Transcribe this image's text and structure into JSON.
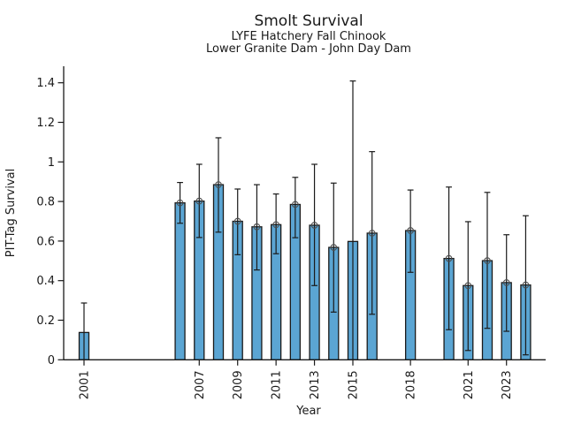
{
  "figure": {
    "title": "Smolt Survival",
    "subtitle_line1": "LYFE Hatchery Fall Chinook",
    "subtitle_line2": "Lower Granite Dam - John Day Dam"
  },
  "chart_data": {
    "type": "bar",
    "title": "Smolt Survival",
    "subtitle": [
      "LYFE Hatchery Fall Chinook",
      "Lower Granite Dam - John Day Dam"
    ],
    "xlabel": "Year",
    "ylabel": "PIT-Tag Survival",
    "ylim": [
      0,
      1.48
    ],
    "xlim": [
      2000,
      2025
    ],
    "grid": false,
    "legend": "none",
    "background": "#ffffff",
    "bar_color": "#5BA5D3",
    "bar_edge_color": "#1a1a1a",
    "error_bar_color": "#1a1a1a",
    "marker_style": "open-circle",
    "marker_color": "#4d4d4d",
    "yticks": [
      "0",
      "0.2",
      "0.4",
      "0.6",
      "0.8",
      "1",
      "1.2",
      "1.4"
    ],
    "xticks": [
      2001,
      2007,
      2009,
      2011,
      2013,
      2015,
      2018,
      2021,
      2023
    ],
    "points": [
      {
        "year": 2001,
        "value": 0.138,
        "lo": 0.0,
        "hi": 0.287,
        "marker": false
      },
      {
        "year": 2006,
        "value": 0.793,
        "lo": 0.69,
        "hi": 0.896,
        "marker": true
      },
      {
        "year": 2007,
        "value": 0.802,
        "lo": 0.618,
        "hi": 0.988,
        "marker": true
      },
      {
        "year": 2008,
        "value": 0.885,
        "lo": 0.645,
        "hi": 1.122,
        "marker": true
      },
      {
        "year": 2009,
        "value": 0.7,
        "lo": 0.531,
        "hi": 0.863,
        "marker": true
      },
      {
        "year": 2010,
        "value": 0.672,
        "lo": 0.454,
        "hi": 0.885,
        "marker": true
      },
      {
        "year": 2011,
        "value": 0.683,
        "lo": 0.536,
        "hi": 0.838,
        "marker": true
      },
      {
        "year": 2012,
        "value": 0.785,
        "lo": 0.617,
        "hi": 0.922,
        "marker": true
      },
      {
        "year": 2013,
        "value": 0.68,
        "lo": 0.375,
        "hi": 0.988,
        "marker": true
      },
      {
        "year": 2014,
        "value": 0.568,
        "lo": 0.241,
        "hi": 0.893,
        "marker": true
      },
      {
        "year": 2015,
        "value": 0.598,
        "lo": 0.0,
        "hi": 1.409,
        "marker": false
      },
      {
        "year": 2016,
        "value": 0.64,
        "lo": 0.23,
        "hi": 1.052,
        "marker": true
      },
      {
        "year": 2018,
        "value": 0.653,
        "lo": 0.442,
        "hi": 0.858,
        "marker": true
      },
      {
        "year": 2020,
        "value": 0.512,
        "lo": 0.152,
        "hi": 0.873,
        "marker": true
      },
      {
        "year": 2021,
        "value": 0.375,
        "lo": 0.047,
        "hi": 0.698,
        "marker": true
      },
      {
        "year": 2022,
        "value": 0.501,
        "lo": 0.159,
        "hi": 0.846,
        "marker": true
      },
      {
        "year": 2023,
        "value": 0.39,
        "lo": 0.144,
        "hi": 0.632,
        "marker": true
      },
      {
        "year": 2024,
        "value": 0.378,
        "lo": 0.025,
        "hi": 0.728,
        "marker": true
      }
    ]
  }
}
